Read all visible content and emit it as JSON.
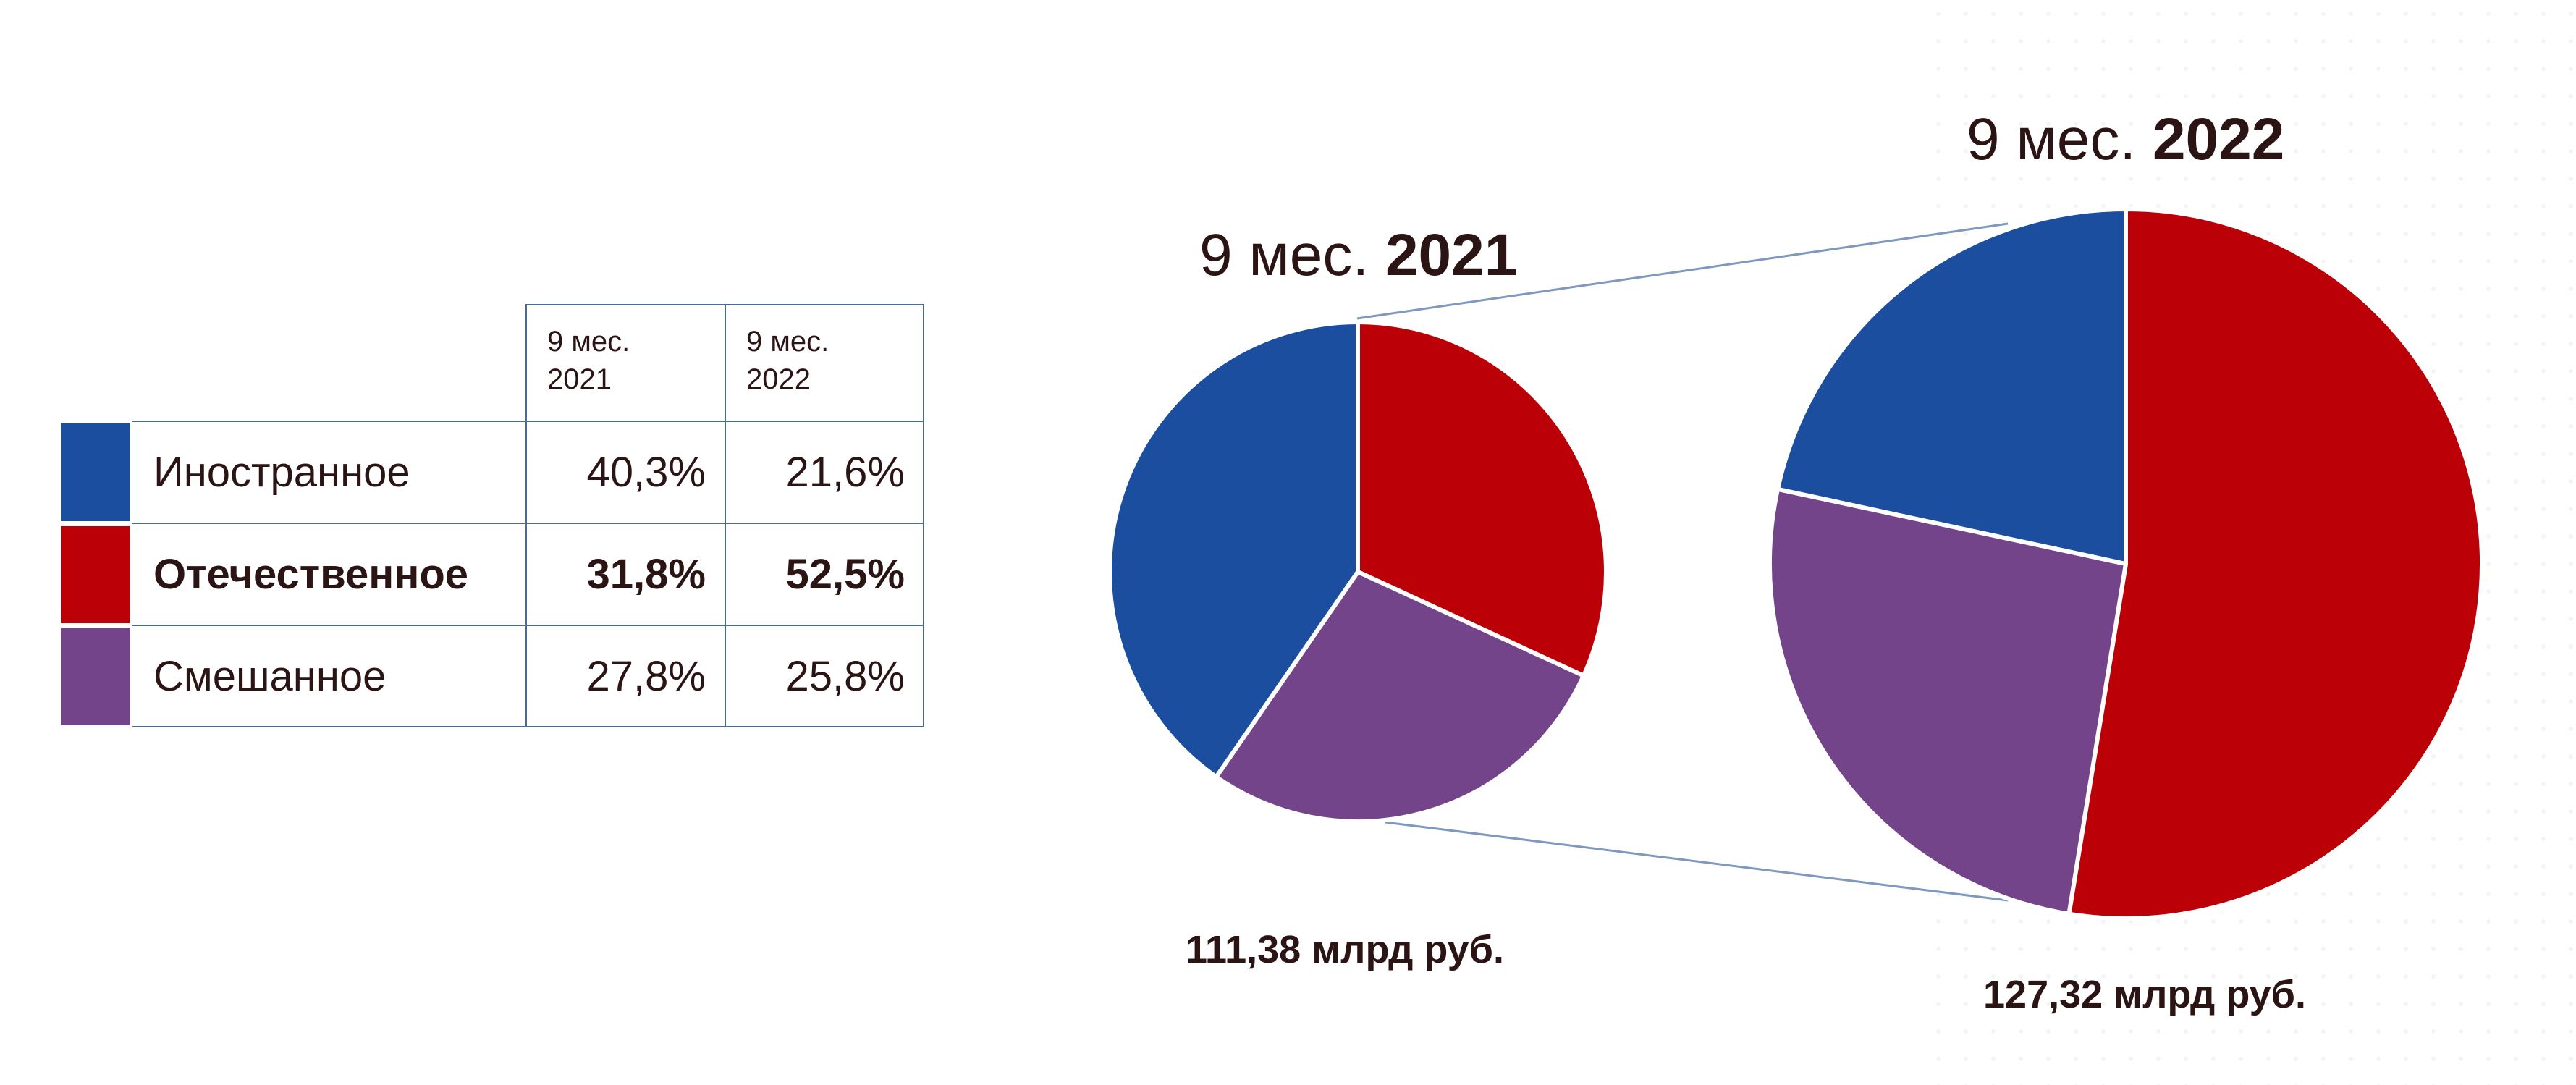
{
  "table": {
    "headers": [
      "9 мес.\n2021",
      "9 мес.\n2022"
    ],
    "header_lines": [
      [
        "9 мес.",
        "2021"
      ],
      [
        "9 мес.",
        "2022"
      ]
    ],
    "rows": [
      {
        "label": "Иностранное",
        "v2021": "40,3%",
        "v2022": "21,6%",
        "color": "#1b4e9e",
        "bold": false
      },
      {
        "label": "Отечественное",
        "v2021": "31,8%",
        "v2022": "52,5%",
        "color": "#bb0008",
        "bold": true
      },
      {
        "label": "Смешанное",
        "v2021": "27,8%",
        "v2022": "25,8%",
        "color": "#73448a",
        "bold": false
      }
    ]
  },
  "chart_data": [
    {
      "type": "pie",
      "title_prefix": "9 мес.",
      "title_year": "2021",
      "total_label": "111,38 млрд руб.",
      "slices": [
        {
          "name": "Отечественное",
          "value": 31.8,
          "color": "#bb0008"
        },
        {
          "name": "Смешанное",
          "value": 27.8,
          "color": "#73448a"
        },
        {
          "name": "Иностранное",
          "value": 40.3,
          "color": "#1b4e9e"
        }
      ]
    },
    {
      "type": "pie",
      "title_prefix": "9 мес.",
      "title_year": "2022",
      "total_label": "127,32 млрд руб.",
      "slices": [
        {
          "name": "Отечественное",
          "value": 52.5,
          "color": "#bb0008"
        },
        {
          "name": "Смешанное",
          "value": 25.8,
          "color": "#73448a"
        },
        {
          "name": "Иностранное",
          "value": 21.6,
          "color": "#1b4e9e"
        }
      ]
    }
  ]
}
